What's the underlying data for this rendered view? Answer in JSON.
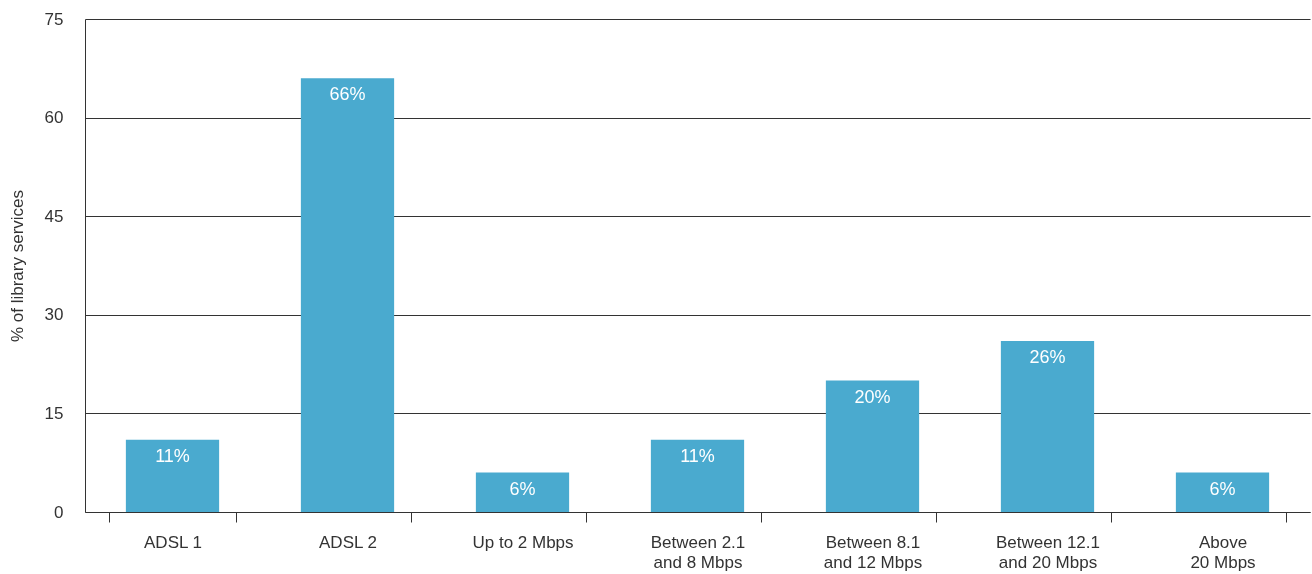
{
  "chart_data": {
    "type": "bar",
    "ylabel": "% of library services",
    "categories": [
      "ADSL 1",
      "ADSL 2",
      "Up to 2 Mbps",
      "Between 2.1\nand 8 Mbps",
      "Between 8.1\nand 12 Mbps",
      "Between 12.1\nand 20 Mbps",
      "Above\n20 Mbps"
    ],
    "values": [
      11,
      66,
      6,
      11,
      20,
      26,
      6
    ],
    "value_labels": [
      "11%",
      "66%",
      "6%",
      "11%",
      "20%",
      "26%",
      "6%"
    ],
    "color": "#4aaacf",
    "ylim": [
      0,
      75
    ],
    "yticks": [
      0,
      15,
      30,
      45,
      60,
      75
    ],
    "grid": "y"
  }
}
